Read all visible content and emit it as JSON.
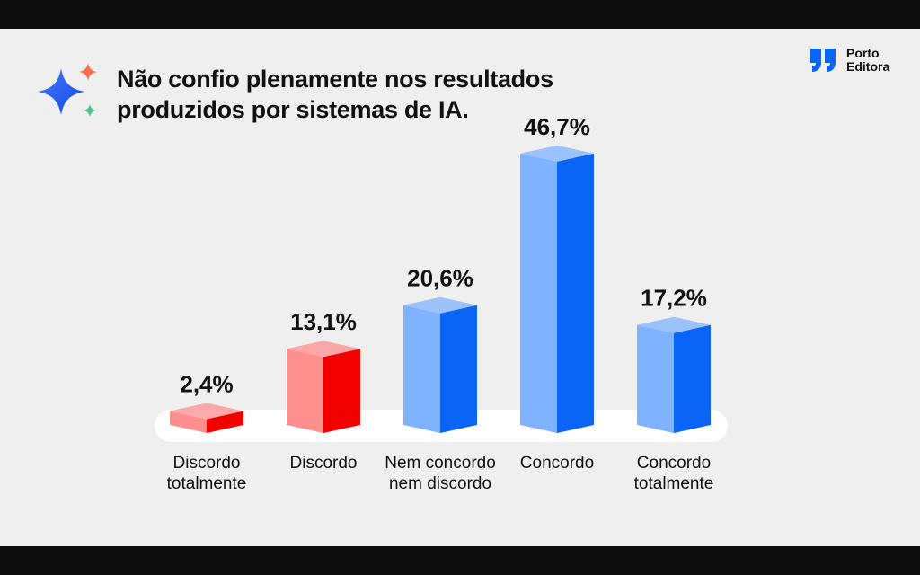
{
  "header": {
    "title_line1": "Não confio plenamente nos resultados",
    "title_line2": "produzidos por sistemas de IA.",
    "brand_line1": "Porto",
    "brand_line2": "Editora"
  },
  "icons": {
    "sparkle": "sparkle-icon",
    "brand_logo": "porto-editora-logo-icon"
  },
  "colors": {
    "disagree_light": "#ff8f8f",
    "disagree_dark": "#f20000",
    "agree_light": "#7fb3ff",
    "agree_dark": "#0a64f5"
  },
  "chart_data": {
    "type": "bar",
    "title": "Não confio plenamente nos resultados produzidos por sistemas de IA.",
    "categories": [
      [
        "Discordo",
        "totalmente"
      ],
      [
        "Discordo"
      ],
      [
        "Nem concordo",
        "nem discordo"
      ],
      [
        "Concordo"
      ],
      [
        "Concordo",
        "totalmente"
      ]
    ],
    "values": [
      2.4,
      13.1,
      20.6,
      46.7,
      17.2
    ],
    "value_labels": [
      "2,4%",
      "13,1%",
      "20,6%",
      "46,7%",
      "17,2%"
    ],
    "tones": [
      "disagree",
      "disagree",
      "agree",
      "agree",
      "agree"
    ],
    "ylim": [
      0,
      50
    ],
    "grid": false,
    "legend": "none"
  }
}
